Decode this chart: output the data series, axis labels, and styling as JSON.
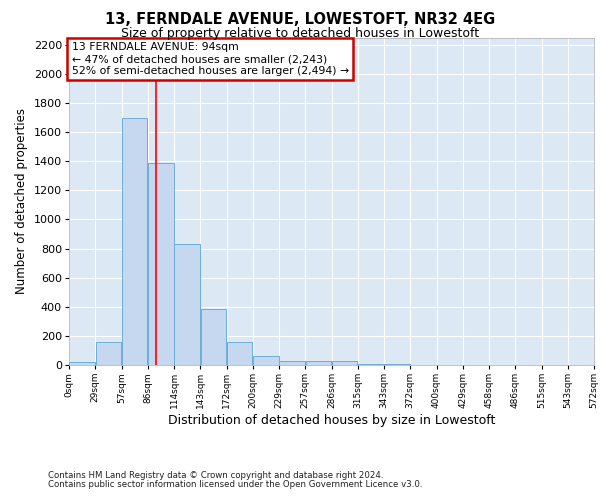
{
  "title1": "13, FERNDALE AVENUE, LOWESTOFT, NR32 4EG",
  "title2": "Size of property relative to detached houses in Lowestoft",
  "xlabel": "Distribution of detached houses by size in Lowestoft",
  "ylabel": "Number of detached properties",
  "footer1": "Contains HM Land Registry data © Crown copyright and database right 2024.",
  "footer2": "Contains public sector information licensed under the Open Government Licence v3.0.",
  "annotation_line1": "13 FERNDALE AVENUE: 94sqm",
  "annotation_line2": "← 47% of detached houses are smaller (2,243)",
  "annotation_line3": "52% of semi-detached houses are larger (2,494) →",
  "bar_width": 28.5,
  "bin_starts": [
    0,
    28.5,
    57,
    85.5,
    114,
    142.5,
    171,
    199.5,
    228,
    256.5,
    285,
    313.5,
    342,
    370.5,
    399,
    427.5,
    456,
    484.5,
    513,
    541.5
  ],
  "bar_heights": [
    20,
    155,
    1700,
    1390,
    830,
    385,
    160,
    65,
    30,
    25,
    25,
    5,
    5,
    0,
    0,
    0,
    0,
    0,
    0,
    0
  ],
  "tick_labels": [
    "0sqm",
    "29sqm",
    "57sqm",
    "86sqm",
    "114sqm",
    "143sqm",
    "172sqm",
    "200sqm",
    "229sqm",
    "257sqm",
    "286sqm",
    "315sqm",
    "343sqm",
    "372sqm",
    "400sqm",
    "429sqm",
    "458sqm",
    "486sqm",
    "515sqm",
    "543sqm",
    "572sqm"
  ],
  "bar_color": "#c5d8ef",
  "bar_edge_color": "#6baed6",
  "red_line_x": 94,
  "ylim": [
    0,
    2250
  ],
  "yticks": [
    0,
    200,
    400,
    600,
    800,
    1000,
    1200,
    1400,
    1600,
    1800,
    2000,
    2200
  ],
  "background_color": "#dce9f5",
  "annotation_box_edge": "#cc0000",
  "grid_color": "#ffffff"
}
